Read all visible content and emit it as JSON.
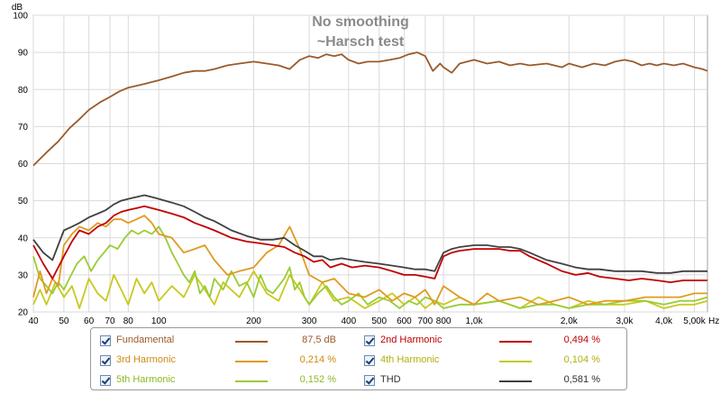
{
  "chart_data": {
    "type": "line",
    "title": "No smoothing",
    "subtitle": "~Harsch test",
    "ylabel": "dB",
    "xunit": "Hz",
    "xscale": "log",
    "xlim": [
      40,
      5500
    ],
    "ylim": [
      20,
      100
    ],
    "grid": true,
    "legend_position": "bottom",
    "y_ticks": [
      {
        "value": 20,
        "label": "20"
      },
      {
        "value": 30,
        "label": "30"
      },
      {
        "value": 40,
        "label": "40"
      },
      {
        "value": 50,
        "label": "50"
      },
      {
        "value": 60,
        "label": "60"
      },
      {
        "value": 70,
        "label": "70"
      },
      {
        "value": 80,
        "label": "80"
      },
      {
        "value": 90,
        "label": "90"
      },
      {
        "value": 100,
        "label": "100"
      }
    ],
    "x_ticks": [
      {
        "value": 40,
        "label": "40"
      },
      {
        "value": 50,
        "label": "50"
      },
      {
        "value": 60,
        "label": "60"
      },
      {
        "value": 70,
        "label": "70"
      },
      {
        "value": 80,
        "label": "80"
      },
      {
        "value": 100,
        "label": "100"
      },
      {
        "value": 200,
        "label": "200"
      },
      {
        "value": 300,
        "label": "300"
      },
      {
        "value": 400,
        "label": "400"
      },
      {
        "value": 500,
        "label": "500"
      },
      {
        "value": 600,
        "label": "600"
      },
      {
        "value": 700,
        "label": "700"
      },
      {
        "value": 800,
        "label": "800"
      },
      {
        "value": 1000,
        "label": "1,0k"
      },
      {
        "value": 2000,
        "label": "2,0k"
      },
      {
        "value": 3000,
        "label": "3,0k"
      },
      {
        "value": 4000,
        "label": "4,0k"
      },
      {
        "value": 5000,
        "label": "5,00k"
      }
    ],
    "series": [
      {
        "name": "Fundamental",
        "color": "#9a5a2b",
        "value_label": "87,5 dB",
        "x": [
          40,
          44,
          48,
          52,
          56,
          60,
          65,
          70,
          75,
          80,
          85,
          90,
          100,
          110,
          120,
          130,
          140,
          150,
          165,
          180,
          200,
          220,
          240,
          260,
          280,
          300,
          320,
          340,
          360,
          380,
          400,
          430,
          460,
          500,
          540,
          580,
          620,
          660,
          700,
          740,
          780,
          800,
          850,
          900,
          1000,
          1100,
          1200,
          1300,
          1400,
          1500,
          1700,
          1900,
          2000,
          2200,
          2400,
          2600,
          2800,
          3000,
          3200,
          3400,
          3600,
          3800,
          4000,
          4300,
          4600,
          5000,
          5300,
          5500
        ],
        "y": [
          59.5,
          63,
          66,
          69.5,
          72,
          74.5,
          76.5,
          78,
          79.5,
          80.5,
          81,
          81.5,
          82.5,
          83.5,
          84.5,
          85,
          85,
          85.5,
          86.5,
          87,
          87.5,
          87,
          86.5,
          85.5,
          88,
          89,
          88.5,
          89.5,
          89,
          89.5,
          88,
          87,
          87.5,
          87.5,
          88,
          88.5,
          89.5,
          90,
          89,
          85,
          87,
          86,
          84.5,
          87,
          88,
          87,
          87.5,
          86.5,
          87,
          86.5,
          87,
          86,
          87,
          86,
          87,
          86.5,
          87.5,
          88,
          87.5,
          86.5,
          87,
          86.5,
          87,
          86.5,
          87,
          86,
          85.5,
          85
        ]
      },
      {
        "name": "2nd Harmonic",
        "color": "#c00000",
        "value_label": "0,494 %",
        "x": [
          40,
          43,
          46,
          50,
          53,
          56,
          60,
          64,
          68,
          72,
          76,
          80,
          85,
          90,
          95,
          100,
          110,
          120,
          130,
          140,
          150,
          170,
          190,
          210,
          230,
          250,
          270,
          290,
          310,
          330,
          350,
          380,
          410,
          450,
          500,
          550,
          600,
          650,
          700,
          750,
          800,
          850,
          900,
          1000,
          1100,
          1200,
          1300,
          1400,
          1500,
          1700,
          1900,
          2100,
          2300,
          2500,
          2800,
          3100,
          3400,
          3800,
          4200,
          4600,
          5000,
          5500
        ],
        "y": [
          38,
          33,
          29,
          35,
          39,
          42,
          41,
          43,
          44,
          46,
          47,
          47.5,
          48,
          48.5,
          48,
          47.5,
          46.5,
          45.5,
          44,
          43,
          42,
          40,
          39,
          38.5,
          38,
          37.5,
          36,
          35,
          33.5,
          34,
          32,
          33,
          32,
          32.5,
          32,
          31,
          30,
          30,
          29.5,
          29,
          35,
          36,
          36.5,
          37,
          37,
          37,
          36.5,
          36.5,
          35,
          33,
          31,
          30,
          30.5,
          29.5,
          29,
          28.5,
          29,
          28.5,
          28,
          28.5,
          28.5,
          28.5
        ]
      },
      {
        "name": "3rd Harmonic",
        "color": "#e09a20",
        "value_label": "0,214 %",
        "x": [
          40,
          42,
          44,
          46,
          48,
          50,
          53,
          56,
          60,
          64,
          68,
          72,
          76,
          80,
          85,
          90,
          95,
          100,
          110,
          120,
          130,
          140,
          150,
          165,
          180,
          200,
          220,
          240,
          260,
          280,
          300,
          330,
          360,
          400,
          450,
          500,
          550,
          600,
          650,
          700,
          750,
          800,
          900,
          1000,
          1100,
          1200,
          1400,
          1600,
          1800,
          2000,
          2300,
          2600,
          3000,
          3500,
          4000,
          4500,
          5000,
          5500
        ],
        "y": [
          24,
          31,
          25,
          29,
          27,
          38,
          41,
          43,
          42,
          44,
          43,
          45,
          45,
          44,
          45,
          46,
          44,
          41,
          40,
          36,
          37,
          38,
          34,
          30,
          31,
          32,
          36,
          38,
          43,
          37,
          30,
          28,
          29,
          25,
          24,
          26,
          23,
          25,
          24,
          26,
          22,
          27,
          24,
          22,
          25,
          23,
          24,
          22,
          23,
          24,
          22,
          23,
          23,
          24,
          24,
          24,
          25,
          25
        ]
      },
      {
        "name": "4th Harmonic",
        "color": "#c8c820",
        "value_label": "0,104 %",
        "x": [
          40,
          42,
          44,
          47,
          50,
          53,
          56,
          60,
          64,
          68,
          72,
          76,
          80,
          85,
          90,
          95,
          100,
          110,
          120,
          130,
          140,
          150,
          160,
          180,
          200,
          220,
          240,
          260,
          280,
          300,
          330,
          360,
          400,
          450,
          500,
          550,
          600,
          650,
          700,
          750,
          800,
          900,
          1000,
          1200,
          1400,
          1600,
          1800,
          2000,
          2300,
          2600,
          3000,
          3500,
          4000,
          4500,
          5000,
          5500
        ],
        "y": [
          22,
          26,
          22,
          28,
          24,
          27,
          21,
          29,
          25,
          23,
          30,
          26,
          22,
          29,
          25,
          28,
          23,
          27,
          24,
          30,
          26,
          22,
          28,
          24,
          31,
          25,
          23,
          30,
          26,
          22,
          28,
          23,
          24,
          21,
          23,
          25,
          22,
          24,
          21,
          23,
          22,
          24,
          22,
          23,
          21,
          24,
          22,
          21,
          23,
          22,
          22,
          23,
          21,
          22,
          22,
          23
        ]
      },
      {
        "name": "5th Harmonic",
        "color": "#99cc33",
        "value_label": "0,152 %",
        "x": [
          40,
          42,
          44,
          46,
          48,
          50,
          52,
          55,
          58,
          61,
          64,
          67,
          70,
          74,
          78,
          82,
          86,
          90,
          95,
          100,
          105,
          110,
          115,
          120,
          125,
          130,
          135,
          140,
          145,
          150,
          160,
          170,
          180,
          190,
          200,
          210,
          220,
          230,
          240,
          250,
          260,
          270,
          280,
          290,
          300,
          320,
          340,
          360,
          380,
          400,
          430,
          460,
          500,
          540,
          580,
          620,
          660,
          700,
          750,
          800,
          900,
          1000,
          1200,
          1400,
          1600,
          1800,
          2000,
          2300,
          2600,
          3000,
          3500,
          4000,
          4500,
          5000,
          5500
        ],
        "y": [
          35,
          29,
          27,
          25,
          28,
          26,
          29,
          33,
          35,
          31,
          34,
          36,
          38,
          37,
          40,
          42,
          41,
          42,
          41,
          43,
          40,
          36,
          33,
          30,
          28,
          31,
          25,
          27,
          24,
          29,
          26,
          31,
          27,
          28,
          24,
          30,
          26,
          25,
          27,
          29,
          32,
          26,
          28,
          24,
          22,
          25,
          27,
          24,
          22,
          23,
          25,
          22,
          24,
          23,
          21,
          23,
          22,
          24,
          23,
          21,
          22,
          22,
          23,
          21,
          22,
          22,
          21,
          22,
          22,
          23,
          23,
          22,
          23,
          23,
          24
        ]
      },
      {
        "name": "THD",
        "color": "#404040",
        "value_label": "0,581 %",
        "x": [
          40,
          43,
          46,
          50,
          53,
          56,
          60,
          64,
          68,
          72,
          76,
          80,
          85,
          90,
          95,
          100,
          110,
          120,
          130,
          140,
          150,
          170,
          190,
          210,
          230,
          250,
          270,
          290,
          310,
          330,
          350,
          380,
          410,
          450,
          500,
          550,
          600,
          650,
          700,
          750,
          800,
          850,
          900,
          1000,
          1100,
          1200,
          1300,
          1400,
          1500,
          1700,
          1900,
          2100,
          2300,
          2500,
          2800,
          3100,
          3400,
          3800,
          4200,
          4600,
          5000,
          5500
        ],
        "y": [
          39.5,
          36,
          34,
          42,
          43,
          44,
          45.5,
          46.5,
          47.5,
          49,
          50,
          50.5,
          51,
          51.5,
          51,
          50.5,
          49.5,
          48.5,
          47,
          45.5,
          44.5,
          42,
          40.5,
          39.5,
          39.5,
          40,
          38,
          36.5,
          35,
          35,
          34,
          34.5,
          34,
          33.5,
          33,
          32.5,
          32,
          31.5,
          31.5,
          31,
          36,
          37,
          37.5,
          38,
          38,
          37.5,
          37.5,
          37,
          36,
          34,
          33,
          32,
          31.5,
          31.5,
          31,
          31,
          31,
          30.5,
          30.5,
          31,
          31,
          31
        ]
      }
    ]
  }
}
